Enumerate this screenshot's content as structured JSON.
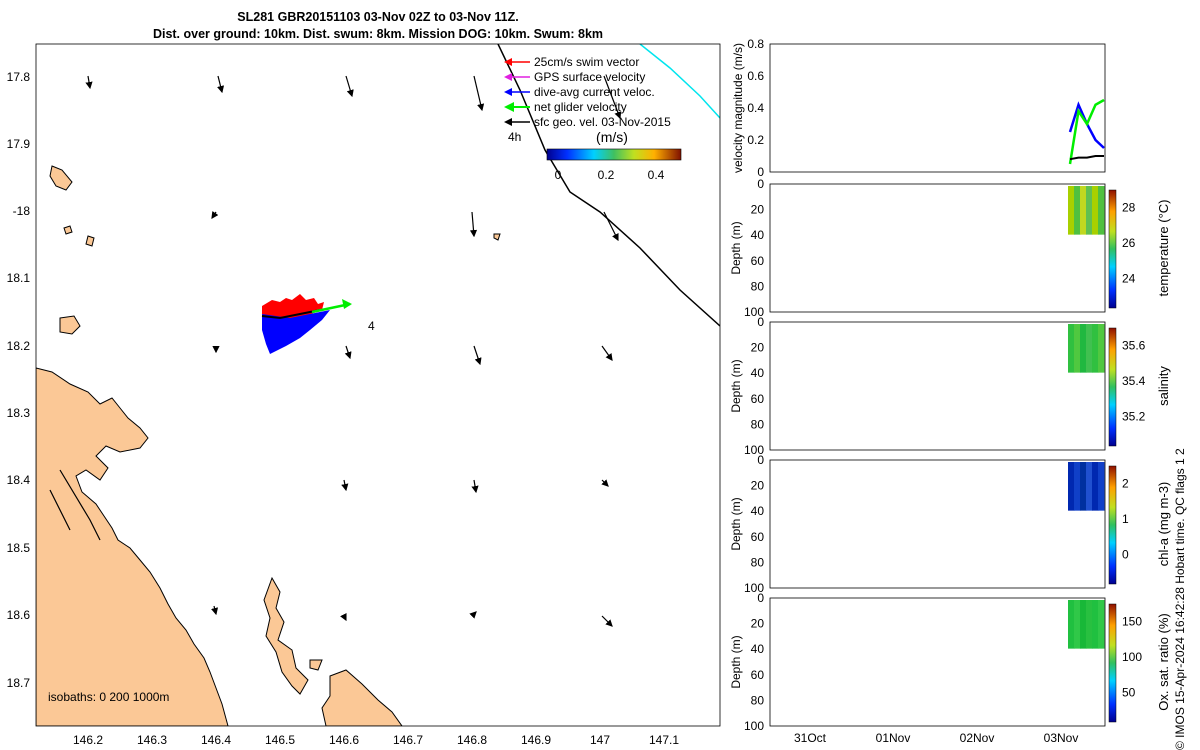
{
  "title": {
    "line1": "SL281 GBR20151103 03-Nov 02Z to 03-Nov 11Z.",
    "line2": "Dist. over ground: 10km. Dist. swum: 8km. Mission DOG: 10km. Swum: 8km"
  },
  "colors": {
    "land": "#fbc896",
    "swim_vector": "#ff0000",
    "gps_velocity": "#e020e0",
    "current_velocity": "#0000ff",
    "glider_velocity": "#00ee00",
    "geo_velocity": "#000000",
    "track_cyan": "#00e5ee"
  },
  "map": {
    "lon_ticks": [
      "146.2",
      "146.3",
      "146.4",
      "146.5",
      "146.6",
      "146.7",
      "146.8",
      "146.9",
      "147",
      "147.1"
    ],
    "lat_ticks": [
      "17.8",
      "17.9",
      "-18",
      "18.1",
      "18.2",
      "18.3",
      "18.4",
      "18.5",
      "18.6",
      "18.7"
    ],
    "isobaths": "isobaths: 0   200  1000m",
    "time_label_4h": "4h",
    "point_label": "4",
    "legend": [
      {
        "label": "25cm/s swim vector",
        "color": "#ff0000"
      },
      {
        "label": "GPS surface velocity",
        "color": "#e020e0"
      },
      {
        "label": "dive-avg current veloc.",
        "color": "#0000ff"
      },
      {
        "label": "net glider velocity",
        "color": "#00ee00"
      },
      {
        "label": "sfc geo. vel. 03-Nov-2015",
        "color": "#000000"
      }
    ],
    "colorbar": {
      "label": "(m/s)",
      "ticks": [
        "0",
        "0.2",
        "0.4"
      ]
    }
  },
  "chart_data": [
    {
      "type": "line",
      "title": "",
      "ylabel": "velocity magnitude (m/s)",
      "ylim": [
        0,
        0.8
      ],
      "yticks": [
        "0",
        "0.2",
        "0.4",
        "0.6",
        "0.8"
      ],
      "series": [
        {
          "name": "dive-avg current veloc.",
          "values": [
            0.25,
            0.42,
            0.3,
            0.2,
            0.15
          ]
        },
        {
          "name": "net glider velocity",
          "values": [
            0.05,
            0.38,
            0.3,
            0.42,
            0.45
          ]
        },
        {
          "name": "sfc geo. vel.",
          "values": [
            0.08,
            0.09,
            0.09,
            0.1,
            0.1
          ]
        }
      ]
    },
    {
      "type": "heatmap",
      "ylabel": "Depth (m)",
      "yticks": [
        "0",
        "20",
        "40",
        "60",
        "80",
        "100"
      ],
      "colorbar_label": "temperature (°C)",
      "colorbar_ticks": [
        "28",
        "26",
        "24"
      ]
    },
    {
      "type": "heatmap",
      "ylabel": "Depth (m)",
      "yticks": [
        "0",
        "20",
        "40",
        "60",
        "80",
        "100"
      ],
      "colorbar_label": "salinity",
      "colorbar_ticks": [
        "35.6",
        "35.4",
        "35.2"
      ]
    },
    {
      "type": "heatmap",
      "ylabel": "Depth (m)",
      "yticks": [
        "0",
        "20",
        "40",
        "60",
        "80",
        "100"
      ],
      "colorbar_label": "chl-a (mg m-3)",
      "colorbar_ticks": [
        "2",
        "1",
        "0"
      ]
    },
    {
      "type": "heatmap",
      "ylabel": "Depth (m)",
      "yticks": [
        "0",
        "20",
        "40",
        "60",
        "80",
        "100"
      ],
      "colorbar_label": "Ox. sat. ratio (%)",
      "colorbar_ticks": [
        "150",
        "100",
        "50"
      ]
    }
  ],
  "time_axis": [
    "31Oct",
    "01Nov",
    "02Nov",
    "03Nov"
  ],
  "footer": "© IMOS 15-Apr-2024 16:42:28 Hobart time. QC flags 1  2"
}
